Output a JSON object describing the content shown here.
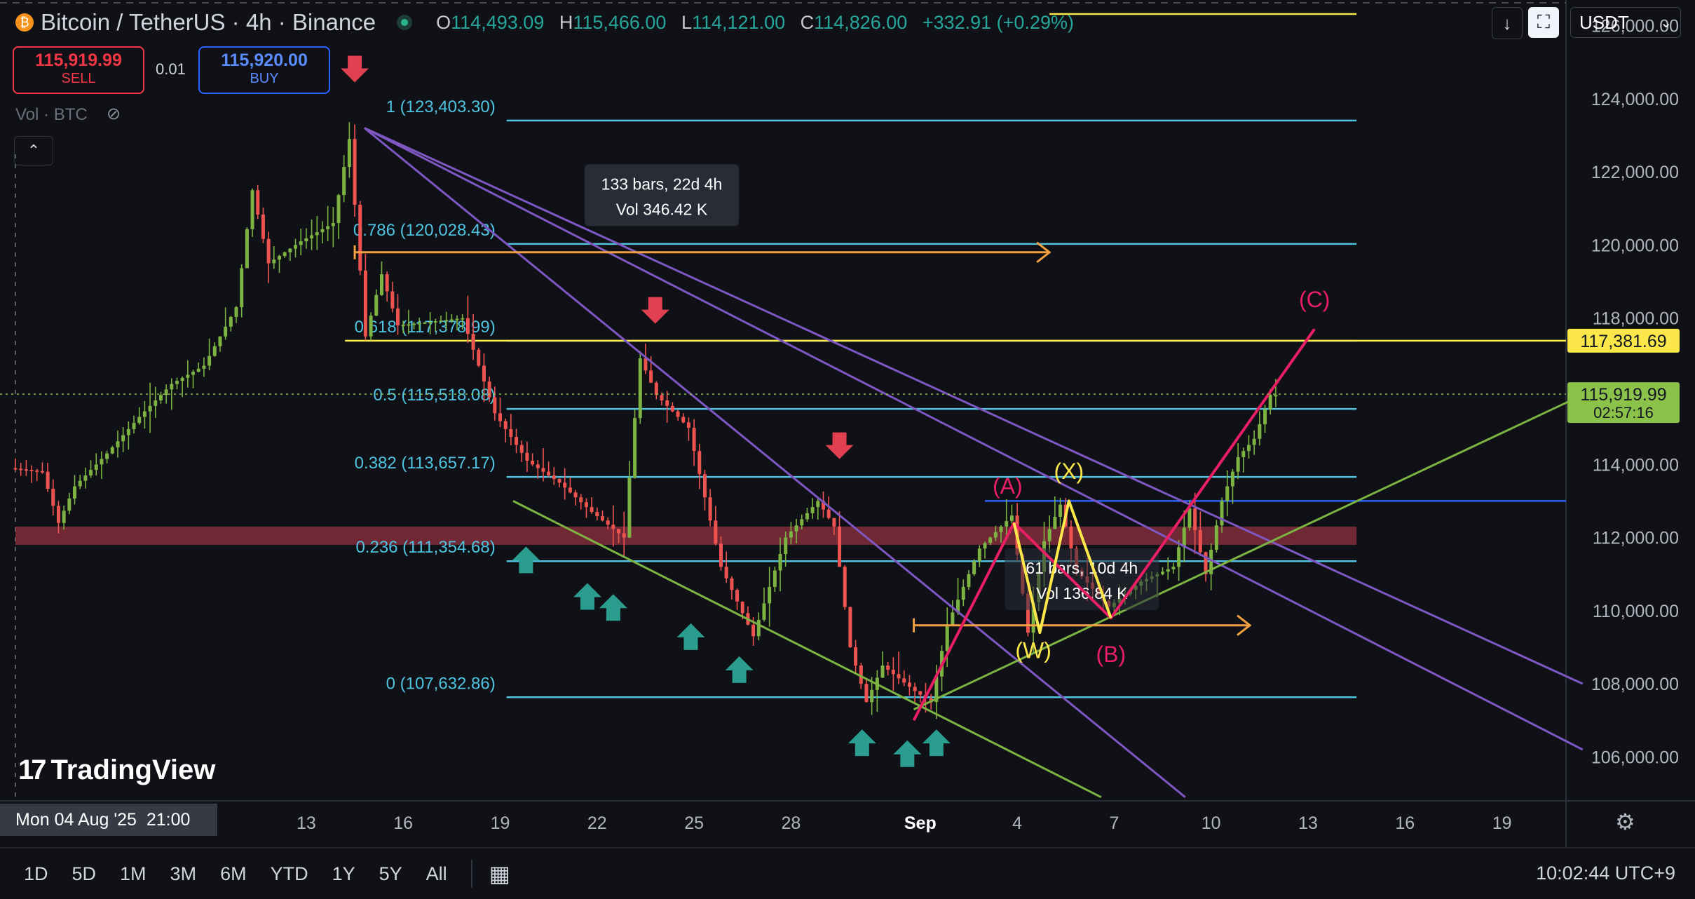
{
  "header": {
    "symbol": "Bitcoin / TetherUS · 4h · Binance",
    "btc_glyph": "₿",
    "ohlc": {
      "o_label": "O",
      "o": "114,493.09",
      "h_label": "H",
      "h": "115,466.00",
      "l_label": "L",
      "l": "114,121.00",
      "c_label": "C",
      "c": "114,826.00",
      "change": "+332.91 (+0.29%)"
    },
    "sell_price": "115,919.99",
    "sell_label": "SELL",
    "buy_price": "115,920.00",
    "buy_label": "BUY",
    "quantity": "0.01",
    "volume_label": "Vol · BTC",
    "currency": "USDT"
  },
  "colors": {
    "background": "#0f1117",
    "fib": "#4fc3e0",
    "channel": "#7e57c2",
    "support": "#7cb342",
    "wave_pink": "#e91e63",
    "wave_yellow": "#fbe74a",
    "up": "#26a69a",
    "down": "#ef5350",
    "zone": "#b03a48"
  },
  "chart_data": {
    "type": "candlestick",
    "title": "",
    "y_axis": {
      "min": 104800,
      "max": 126700,
      "ticks": [
        106000,
        108000,
        110000,
        112000,
        114000,
        116000,
        118000,
        120000,
        122000,
        124000,
        126000
      ],
      "tick_labels": [
        "106,000.00",
        "108,000.00",
        "110,000.00",
        "112,000.00",
        "114,000.00",
        "116,000.00",
        "118,000.00",
        "120,000.00",
        "122,000.00",
        "124,000.00",
        "126,000.00"
      ]
    },
    "x_axis": {
      "tick_labels": [
        "13",
        "16",
        "19",
        "22",
        "25",
        "28",
        "Sep",
        "4",
        "7",
        "10",
        "13",
        "16",
        "19"
      ],
      "ticks_day_index": [
        9,
        12,
        15,
        18,
        21,
        24,
        28,
        31,
        34,
        37,
        40,
        43,
        46
      ],
      "start_label": "Mon 04 Aug '25",
      "start_time": "21:00"
    },
    "price_path": [
      [
        0,
        113900
      ],
      [
        1,
        113800
      ],
      [
        1.5,
        112400
      ],
      [
        2,
        113400
      ],
      [
        3,
        114300
      ],
      [
        4,
        115300
      ],
      [
        5,
        116200
      ],
      [
        6,
        116700
      ],
      [
        7,
        118300
      ],
      [
        7.5,
        121500
      ],
      [
        8,
        119500
      ],
      [
        9,
        120100
      ],
      [
        10,
        120600
      ],
      [
        10.5,
        122900
      ],
      [
        11,
        117500
      ],
      [
        11.5,
        119200
      ],
      [
        12,
        117800
      ],
      [
        13,
        117900
      ],
      [
        14,
        118000
      ],
      [
        15,
        115400
      ],
      [
        16,
        114100
      ],
      [
        17,
        113500
      ],
      [
        18,
        112700
      ],
      [
        19,
        112000
      ],
      [
        19.5,
        116900
      ],
      [
        20,
        115900
      ],
      [
        21,
        115000
      ],
      [
        22,
        111200
      ],
      [
        23,
        109300
      ],
      [
        24,
        112000
      ],
      [
        25,
        113000
      ],
      [
        25.5,
        112300
      ],
      [
        26,
        109000
      ],
      [
        26.5,
        107500
      ],
      [
        27,
        108500
      ],
      [
        28,
        107800
      ],
      [
        28.5,
        107500
      ],
      [
        29,
        109600
      ],
      [
        30,
        111700
      ],
      [
        31,
        112600
      ],
      [
        31.5,
        109400
      ],
      [
        32,
        111900
      ],
      [
        32.5,
        112900
      ],
      [
        33,
        111100
      ],
      [
        34,
        110100
      ],
      [
        35,
        110800
      ],
      [
        36,
        111200
      ],
      [
        36.5,
        112800
      ],
      [
        37,
        111000
      ],
      [
        37.5,
        113000
      ],
      [
        38,
        114200
      ],
      [
        38.5,
        114700
      ],
      [
        39,
        115900
      ]
    ],
    "fibonacci": [
      {
        "label": "1 (123,403.30)",
        "value": 123403.3
      },
      {
        "label": "0.786 (120,028.43)",
        "value": 120028.43
      },
      {
        "label": "0.618 (117,378.99)",
        "value": 117378.99
      },
      {
        "label": "0.5 (115,518.08)",
        "value": 115518.08
      },
      {
        "label": "0.382 (113,657.17)",
        "value": 113657.17
      },
      {
        "label": "0.236 (111,354.68)",
        "value": 111354.68
      },
      {
        "label": "0 (107,632.86)",
        "value": 107632.86
      }
    ],
    "horizontal_lines": [
      {
        "value": 117381.69,
        "color": "#fbe74a"
      },
      {
        "value": 113000,
        "color": "#2962ff"
      }
    ],
    "zone": {
      "from_day": 0,
      "to_day": 41.5,
      "low": 111800,
      "high": 112300
    },
    "channel_lines": [
      {
        "from": [
          10.8,
          123200
        ],
        "to": [
          48.5,
          106200
        ]
      },
      {
        "from": [
          10.8,
          123200
        ],
        "to": [
          48.5,
          108000
        ]
      },
      {
        "from": [
          10.8,
          123200
        ],
        "to": [
          36.2,
          104900
        ]
      }
    ],
    "support_lines": [
      {
        "from": [
          15.4,
          113000
        ],
        "to": [
          33.6,
          104900
        ]
      },
      {
        "from": [
          27.8,
          107300
        ],
        "to": [
          48.5,
          115900
        ]
      }
    ],
    "waves_pink": {
      "points": [
        [
          27.8,
          107000
        ],
        [
          30.9,
          112400
        ],
        [
          33.9,
          109800
        ],
        [
          40.2,
          117700
        ]
      ],
      "labels": [
        {
          "text": "(A)",
          "at": [
            30.7,
            113200
          ]
        },
        {
          "text": "(B)",
          "at": [
            33.9,
            108600
          ]
        },
        {
          "text": "(C)",
          "at": [
            40.2,
            118300
          ]
        }
      ]
    },
    "waves_yellow": {
      "points": [
        [
          30.9,
          112400
        ],
        [
          31.7,
          109400
        ],
        [
          32.6,
          113000
        ],
        [
          33.9,
          109800
        ]
      ],
      "labels": [
        {
          "text": "(X)",
          "at": [
            32.6,
            113600
          ]
        },
        {
          "text": "(W)",
          "at": [
            31.5,
            108700
          ]
        }
      ]
    },
    "date_ranges": [
      {
        "from": [
          10.5,
          119800
        ],
        "to": [
          32,
          119800
        ],
        "label_1": "133 bars, 22d 4h",
        "label_2": "Vol 346.42 K",
        "label_at": [
          20,
          121400
        ]
      },
      {
        "from": [
          27.8,
          109600
        ],
        "to": [
          38.2,
          109600
        ],
        "label_1": "61 bars, 10d 4h",
        "label_2": "Vol 136.84 K",
        "label_at": [
          33,
          110900
        ]
      }
    ],
    "signal_arrows": {
      "down": [
        [
          10.5,
          124600
        ],
        [
          19.8,
          118000
        ],
        [
          25.5,
          114300
        ]
      ],
      "up": [
        [
          15.8,
          111600
        ],
        [
          17.7,
          110600
        ],
        [
          18.5,
          110300
        ],
        [
          20.9,
          109500
        ],
        [
          22.4,
          108600
        ],
        [
          26.2,
          106600
        ],
        [
          27.6,
          106300
        ],
        [
          28.5,
          106600
        ]
      ]
    },
    "price_labels": [
      {
        "text": "117,381.69",
        "value": 117381.69,
        "bg": "#fbe74a",
        "fg": "#131722"
      },
      {
        "text": "115,919.99",
        "value": 115919.99,
        "bg": "#8bc34a",
        "fg": "#131722",
        "sub": "02:57:16"
      }
    ]
  },
  "branding": {
    "logo_mark": "17",
    "logo_text": "TradingView"
  },
  "bottom": {
    "timeframes": [
      "1D",
      "5D",
      "1M",
      "3M",
      "6M",
      "YTD",
      "1Y",
      "5Y",
      "All"
    ],
    "clock": "10:02:44 UTC+9"
  },
  "icons": {
    "calendar": "📅",
    "gear": "⚙",
    "download": "↓",
    "eye": "👁",
    "chevron_up": "⌃"
  }
}
